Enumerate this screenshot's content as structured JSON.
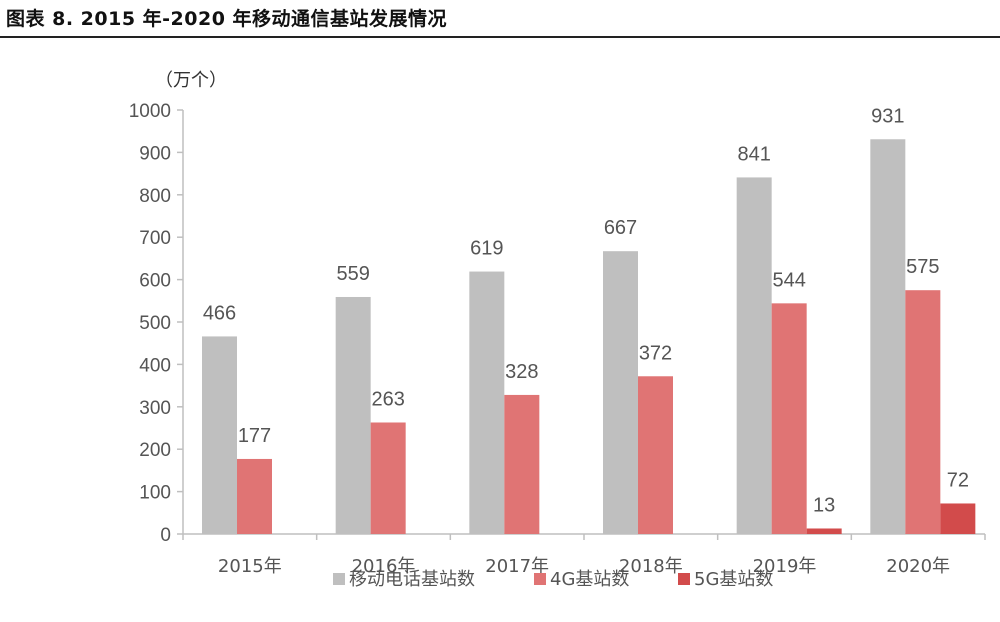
{
  "figure": {
    "title": "图表 8. 2015 年-2020 年移动通信基站发展情况",
    "unit": "（万个）"
  },
  "chart_data": {
    "type": "bar",
    "title": "",
    "xlabel": "",
    "ylabel": "（万个）",
    "ylim": [
      0,
      1000
    ],
    "yticks": [
      0,
      100,
      200,
      300,
      400,
      500,
      600,
      700,
      800,
      900,
      1000
    ],
    "categories": [
      "2015年",
      "2016年",
      "2017年",
      "2018年",
      "2019年",
      "2020年"
    ],
    "series": [
      {
        "name": "移动电话基站数",
        "color": "#bfbfbf",
        "values": [
          466,
          559,
          619,
          667,
          841,
          931
        ]
      },
      {
        "name": "4G基站数",
        "color": "#e07474",
        "values": [
          177,
          263,
          328,
          372,
          544,
          575
        ]
      },
      {
        "name": "5G基站数",
        "color": "#d24b4b",
        "values": [
          null,
          null,
          null,
          null,
          13,
          72
        ]
      }
    ],
    "legend_position": "bottom",
    "grid": false
  }
}
